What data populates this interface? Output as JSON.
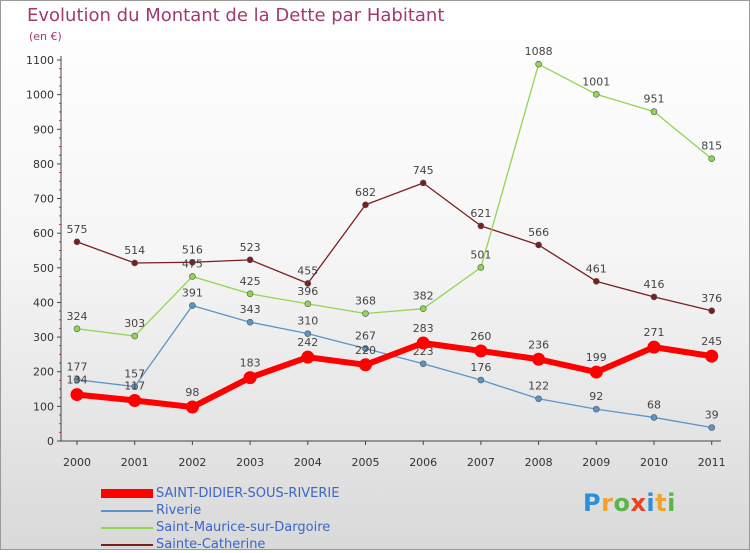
{
  "title": "Evolution du Montant de la Dette par Habitant",
  "unit_label": "(en €)",
  "logo": {
    "text": "Proxiti",
    "colors": [
      "#2d8fd6",
      "#f0a32b",
      "#5ab54a",
      "#e8421e",
      "#2d8fd6",
      "#f0a32b",
      "#5ab54a"
    ]
  },
  "chart_data": {
    "type": "line",
    "title": "Evolution du Montant de la Dette par Habitant",
    "ylabel": "(en €)",
    "xlabel": "",
    "x": [
      "2000",
      "2001",
      "2002",
      "2003",
      "2004",
      "2005",
      "2006",
      "2007",
      "2008",
      "2009",
      "2010",
      "2011"
    ],
    "ylim": [
      0,
      1100
    ],
    "yticks": [
      0,
      100,
      200,
      300,
      400,
      500,
      600,
      700,
      800,
      900,
      1000,
      1100
    ],
    "grid": false,
    "legend_position": "bottom-left",
    "series": [
      {
        "name": "Sainte-Catherine",
        "color": "#7a1f1f",
        "values": [
          575,
          514,
          516,
          523,
          455,
          682,
          745,
          621,
          566,
          461,
          416,
          376
        ]
      },
      {
        "name": "Saint-Maurice-sur-Dargoire",
        "color": "#8fd651",
        "values": [
          324,
          303,
          475,
          425,
          396,
          368,
          382,
          501,
          1088,
          1001,
          951,
          815
        ]
      },
      {
        "name": "Riverie",
        "color": "#5b94c9",
        "values": [
          177,
          157,
          391,
          343,
          310,
          267,
          223,
          176,
          122,
          92,
          68,
          39
        ]
      },
      {
        "name": "SAINT-DIDIER-SOUS-RIVERIE",
        "color": "#ff0000",
        "values": [
          134,
          117,
          98,
          183,
          242,
          220,
          283,
          260,
          236,
          199,
          271,
          245
        ]
      }
    ],
    "legend_order": [
      "SAINT-DIDIER-SOUS-RIVERIE",
      "Riverie",
      "Saint-Maurice-sur-Dargoire",
      "Sainte-Catherine"
    ]
  }
}
